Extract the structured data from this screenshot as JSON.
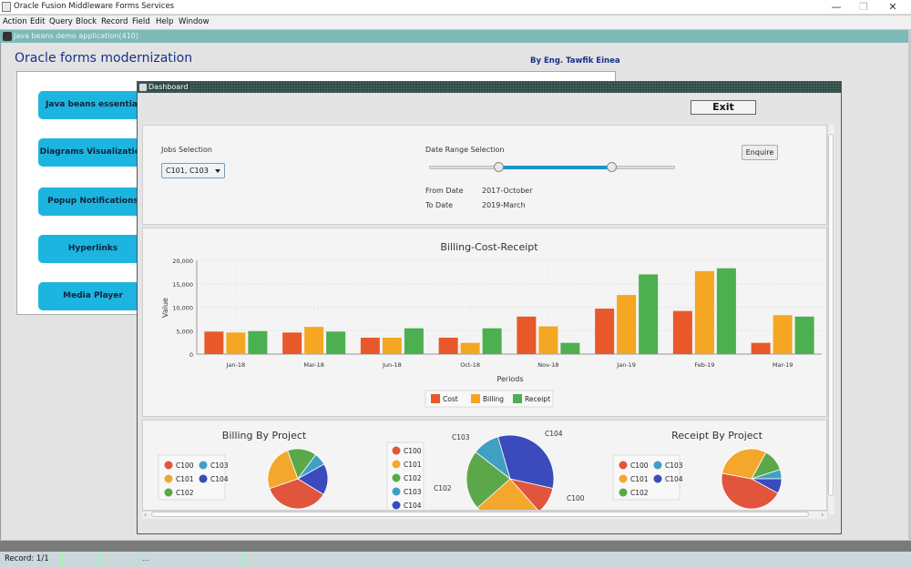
{
  "window": {
    "title": "Oracle Fusion Middleware Forms Services",
    "min": "—",
    "max": "❐",
    "close": "✕"
  },
  "menu": [
    "Action",
    "Edit",
    "Query",
    "Block",
    "Record",
    "Field",
    "Help",
    "Window"
  ],
  "inner_window": {
    "title": "Java beans demo application(410)"
  },
  "page": {
    "heading": "Oracle forms modernization",
    "byline": "By Eng. Tawfik Einea"
  },
  "nav": [
    "Java beans essential",
    "Diagrams Visualization",
    "Popup Notifications",
    "Hyperlinks",
    "Media Player"
  ],
  "dashboard": {
    "title": "Dashboard",
    "exit_label": "Exit",
    "jobs_label": "Jobs Selection",
    "jobs_value": "C101, C103",
    "date_range_label": "Date Range Selection",
    "slider_low": 0.28,
    "slider_high": 0.74,
    "from_label": "From Date",
    "from_value": "2017-October",
    "to_label": "To Date",
    "to_value": "2019-March",
    "enquire_label": "Enquire"
  },
  "colors": {
    "cost": "#e8582a",
    "billing": "#f5a623",
    "receipt": "#4caf50",
    "c100": "#e0553c",
    "c101": "#f3a72d",
    "c102": "#5aa84a",
    "c103": "#3fa0c4",
    "c104": "#3b4bbd"
  },
  "chart_data": [
    {
      "type": "bar",
      "title": "Billing-Cost-Receipt",
      "xlabel": "Periods",
      "ylabel": "Value",
      "ylim": [
        0,
        20000
      ],
      "yticks": [
        "0",
        "5,000",
        "10,000",
        "15,000",
        "20,000"
      ],
      "categories": [
        "Jan-18",
        "Mar-18",
        "Jun-18",
        "Oct-18",
        "Nov-18",
        "Jan-19",
        "Feb-19",
        "Mar-19"
      ],
      "series": [
        {
          "name": "Cost",
          "values": [
            4800,
            4600,
            3500,
            3500,
            8000,
            9700,
            9200,
            2400
          ]
        },
        {
          "name": "Billing",
          "values": [
            4600,
            5800,
            3500,
            2400,
            5900,
            12600,
            17700,
            8300
          ]
        },
        {
          "name": "Receipt",
          "values": [
            4900,
            4800,
            5500,
            5500,
            2400,
            17000,
            18300,
            8000
          ]
        }
      ]
    },
    {
      "type": "pie",
      "title": "Billing By Project",
      "labels": [
        "C100",
        "C101",
        "C102",
        "C103",
        "C104"
      ],
      "values": [
        32,
        22,
        14,
        6,
        15
      ]
    },
    {
      "type": "pie",
      "title": "",
      "labels": [
        "C100",
        "C101",
        "C102",
        "C103",
        "C104"
      ],
      "values": [
        10,
        25,
        22,
        10,
        33
      ]
    },
    {
      "type": "pie",
      "title": "Receipt By Project",
      "labels": [
        "C100",
        "C101",
        "C102",
        "C103",
        "C104"
      ],
      "values": [
        45,
        30,
        12,
        5,
        8
      ]
    }
  ],
  "status": {
    "text": "Record: 1/1",
    "ellipsis": "..."
  }
}
